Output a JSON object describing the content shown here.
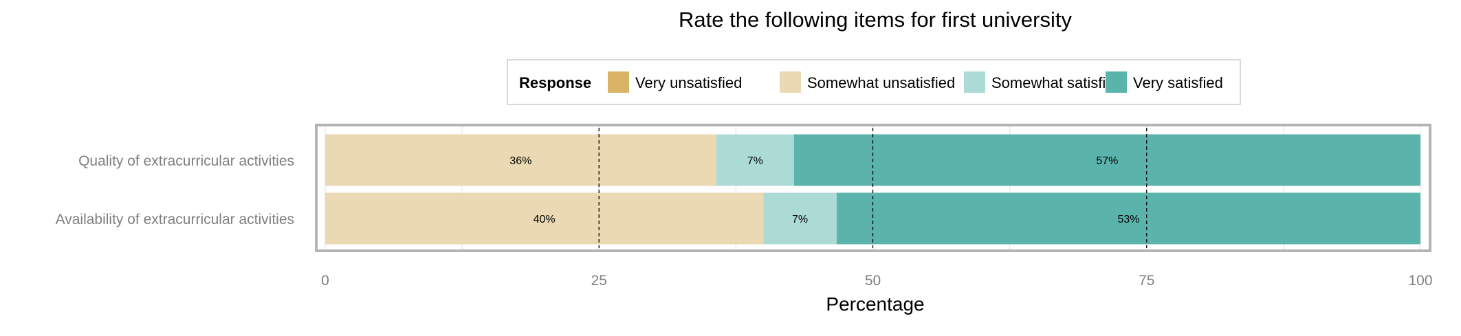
{
  "chart_data": {
    "type": "bar",
    "orientation": "horizontal",
    "stacked": true,
    "title": "Rate the following items for first university",
    "xlabel": "Percentage",
    "ylabel": "",
    "xlim": [
      0,
      100
    ],
    "x_ticks": [
      "0",
      "25",
      "50",
      "75",
      "100"
    ],
    "x_tick_values": [
      0,
      25,
      50,
      75,
      100
    ],
    "reference_lines": [
      25,
      50,
      75
    ],
    "grid": true,
    "legend": {
      "title": "Response",
      "position": "top",
      "entries": [
        "Very unsatisfied",
        "Somewhat unsatisfied",
        "Somewhat satisfied",
        "Very satisfied"
      ]
    },
    "categories": [
      "Quality of extracurricular activities",
      "Availability of extracurricular activities"
    ],
    "series": [
      {
        "name": "Very unsatisfied",
        "color": "#dab466",
        "values": [
          0,
          0
        ],
        "labels": [
          "",
          ""
        ]
      },
      {
        "name": "Somewhat unsatisfied",
        "color": "#ead9b2",
        "values": [
          35.7,
          40
        ],
        "labels": [
          "36%",
          "40%"
        ]
      },
      {
        "name": "Somewhat satisfied",
        "color": "#acdbd6",
        "values": [
          7.1,
          6.7
        ],
        "labels": [
          "7%",
          "7%"
        ]
      },
      {
        "name": "Very satisfied",
        "color": "#5ab4ac",
        "values": [
          57.2,
          53.3
        ],
        "labels": [
          "57%",
          "53%"
        ]
      }
    ]
  }
}
